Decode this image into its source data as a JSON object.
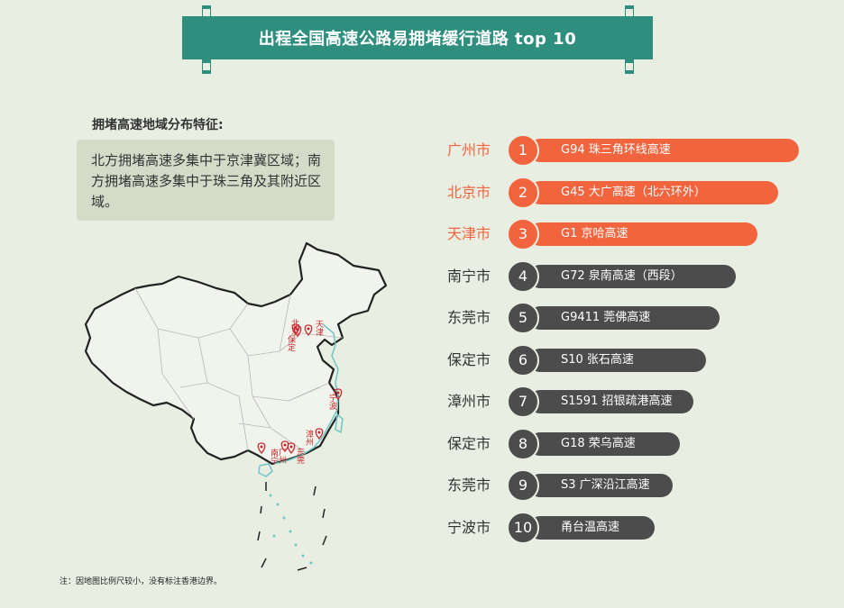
{
  "header": {
    "title": "出程全国高速公路易拥堵缓行道路 top 10"
  },
  "feature": {
    "title": "拥堵高速地域分布特征:",
    "text": "北方拥堵高速多集中于京津冀区域；南方拥堵高速多集中于珠三角及其附近区域。"
  },
  "map": {
    "markers": [
      {
        "label": "北京"
      },
      {
        "label": "天津"
      },
      {
        "label": "保定"
      },
      {
        "label": "宁波"
      },
      {
        "label": "漳州"
      },
      {
        "label": "南宁"
      },
      {
        "label": "广州"
      },
      {
        "label": "东莞"
      }
    ],
    "marker_color": "#c8282d"
  },
  "note": "注：因地图比例尺较小，没有标注香港边界。",
  "colors": {
    "highlight": "#f2643e",
    "normal": "#4c4c4c",
    "banner": "#2f8f7f",
    "background": "#e9eee2"
  },
  "chart_data": {
    "type": "bar",
    "title": "出程全国高速公路易拥堵缓行道路 top 10",
    "categories": [
      "1",
      "2",
      "3",
      "4",
      "5",
      "6",
      "7",
      "8",
      "9",
      "10"
    ],
    "rows": [
      {
        "rank": "1",
        "city": "广州市",
        "road": "G94 珠三角环线高速",
        "highlight": true
      },
      {
        "rank": "2",
        "city": "北京市",
        "road": "G45 大广高速（北六环外）",
        "highlight": true
      },
      {
        "rank": "3",
        "city": "天津市",
        "road": "G1 京哈高速",
        "highlight": true
      },
      {
        "rank": "4",
        "city": "南宁市",
        "road": "G72 泉南高速（西段）",
        "highlight": false
      },
      {
        "rank": "5",
        "city": "东莞市",
        "road": "G9411 莞佛高速",
        "highlight": false
      },
      {
        "rank": "6",
        "city": "保定市",
        "road": "S10 张石高速",
        "highlight": false
      },
      {
        "rank": "7",
        "city": "漳州市",
        "road": "S1591 招银疏港高速",
        "highlight": false
      },
      {
        "rank": "8",
        "city": "保定市",
        "road": "G18 荣乌高速",
        "highlight": false
      },
      {
        "rank": "9",
        "city": "东莞市",
        "road": "S3 广深沿江高速",
        "highlight": false
      },
      {
        "rank": "10",
        "city": "宁波市",
        "road": "甬台温高速",
        "highlight": false
      }
    ]
  }
}
